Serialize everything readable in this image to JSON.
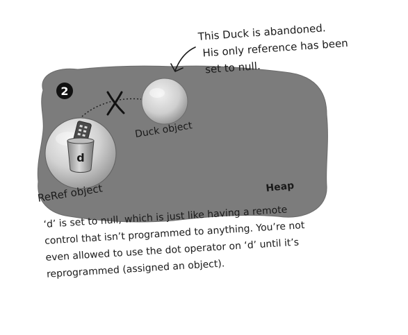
{
  "annotation": {
    "lines": [
      "This Duck is abandoned.",
      "His only reference has been",
      "set to null."
    ]
  },
  "step_badge": "2",
  "objects": {
    "duck": "Duck object",
    "reref": "ReRef object",
    "reference_var": "d"
  },
  "heap_label": "Heap",
  "caption": {
    "lines": [
      "‘d’ is set to null, which is just like having a remote",
      "control that isn’t programmed to anything. You’re not",
      "even allowed to use the dot operator on ‘d’ until it’s",
      "reprogrammed (assigned an object)."
    ]
  },
  "colors": {
    "heap": "#7c7c7c",
    "heap_edge": "#6a6a6a",
    "ink": "#1a1a1a",
    "badge": "#111111",
    "sphere_light": "#f2f2f2",
    "sphere_dark": "#9d9d9d"
  }
}
